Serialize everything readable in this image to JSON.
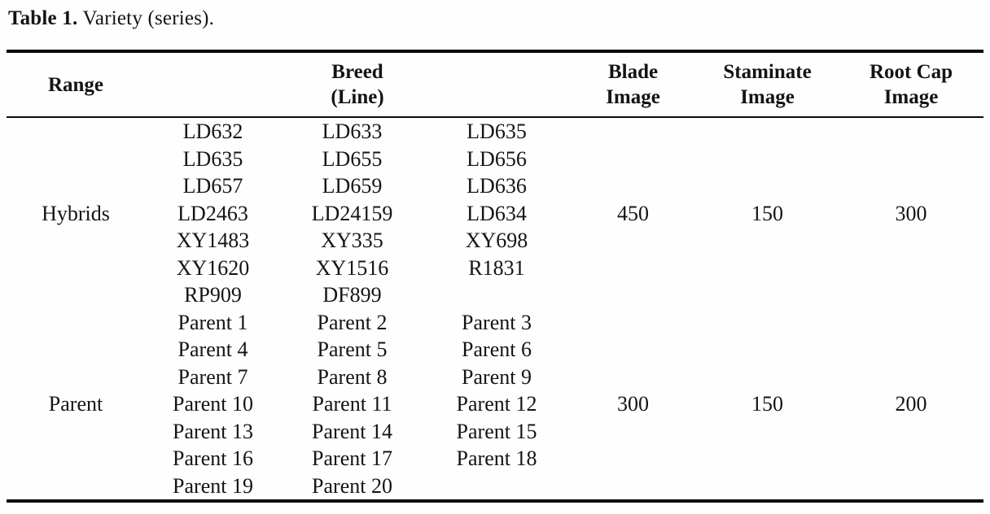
{
  "title": {
    "label": "Table 1.",
    "text": "Variety (series)."
  },
  "table": {
    "headers": {
      "range": "Range",
      "breed": [
        "Breed",
        "(Line)"
      ],
      "blade": [
        "Blade",
        "Image"
      ],
      "staminate": [
        "Staminate",
        "Image"
      ],
      "rootcap": [
        "Root Cap",
        "Image"
      ]
    },
    "groups": [
      {
        "range": "Hybrids",
        "breed_rows": [
          [
            "LD632",
            "LD633",
            "LD635"
          ],
          [
            "LD635",
            "LD655",
            "LD656"
          ],
          [
            "LD657",
            "LD659",
            "LD636"
          ],
          [
            "LD2463",
            "LD24159",
            "LD634"
          ],
          [
            "XY1483",
            "XY335",
            "XY698"
          ],
          [
            "XY1620",
            "XY1516",
            "R1831"
          ],
          [
            "RP909",
            "DF899",
            ""
          ]
        ],
        "blade": "450",
        "staminate": "150",
        "rootcap": "300"
      },
      {
        "range": "Parent",
        "breed_rows": [
          [
            "Parent 1",
            "Parent 2",
            "Parent 3"
          ],
          [
            "Parent 4",
            "Parent 5",
            "Parent 6"
          ],
          [
            "Parent 7",
            "Parent 8",
            "Parent 9"
          ],
          [
            "Parent 10",
            "Parent 11",
            "Parent 12"
          ],
          [
            "Parent 13",
            "Parent 14",
            "Parent 15"
          ],
          [
            "Parent 16",
            "Parent 17",
            "Parent 18"
          ],
          [
            "Parent 19",
            "Parent 20",
            ""
          ]
        ],
        "blade": "300",
        "staminate": "150",
        "rootcap": "200"
      }
    ]
  }
}
